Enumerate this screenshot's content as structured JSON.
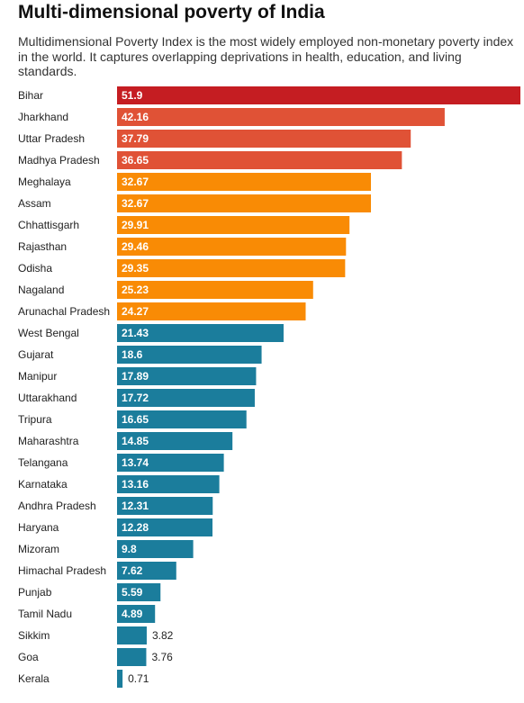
{
  "chart_data": {
    "type": "bar",
    "orientation": "horizontal",
    "title": "Multi-dimensional poverty of India",
    "subtitle": "Multidimensional Poverty Index is the most widely employed non-monetary poverty index in the world. It captures overlapping deprivations in health, education, and living standards.",
    "xlim": [
      0,
      51.9
    ],
    "grid": false,
    "categories": [
      "Bihar",
      "Jharkhand",
      "Uttar Pradesh",
      "Madhya Pradesh",
      "Meghalaya",
      "Assam",
      "Chhattisgarh",
      "Rajasthan",
      "Odisha",
      "Nagaland",
      "Arunachal Pradesh",
      "West Bengal",
      "Gujarat",
      "Manipur",
      "Uttarakhand",
      "Tripura",
      "Maharashtra",
      "Telangana",
      "Karnataka",
      "Andhra Pradesh",
      "Haryana",
      "Mizoram",
      "Himachal Pradesh",
      "Punjab",
      "Tamil Nadu",
      "Sikkim",
      "Goa",
      "Kerala"
    ],
    "values": [
      51.9,
      42.16,
      37.79,
      36.65,
      32.67,
      32.67,
      29.91,
      29.46,
      29.35,
      25.23,
      24.27,
      21.43,
      18.6,
      17.89,
      17.72,
      16.65,
      14.85,
      13.74,
      13.16,
      12.31,
      12.28,
      9.8,
      7.62,
      5.59,
      4.89,
      3.82,
      3.76,
      0.71
    ],
    "value_labels": [
      "51.9",
      "42.16",
      "37.79",
      "36.65",
      "32.67",
      "32.67",
      "29.91",
      "29.46",
      "29.35",
      "25.23",
      "24.27",
      "21.43",
      "18.6",
      "17.89",
      "17.72",
      "16.65",
      "14.85",
      "13.74",
      "13.16",
      "12.31",
      "12.28",
      "9.8",
      "7.62",
      "5.59",
      "4.89",
      "3.82",
      "3.76",
      "0.71"
    ],
    "colors": [
      "#c51d22",
      "#e05236",
      "#e05236",
      "#e05236",
      "#f98b05",
      "#f98b05",
      "#f98b05",
      "#f98b05",
      "#f98b05",
      "#f98b05",
      "#f98b05",
      "#1b7d9c",
      "#1b7d9c",
      "#1b7d9c",
      "#1b7d9c",
      "#1b7d9c",
      "#1b7d9c",
      "#1b7d9c",
      "#1b7d9c",
      "#1b7d9c",
      "#1b7d9c",
      "#1b7d9c",
      "#1b7d9c",
      "#1b7d9c",
      "#1b7d9c",
      "#1b7d9c",
      "#1b7d9c",
      "#1b7d9c"
    ]
  }
}
